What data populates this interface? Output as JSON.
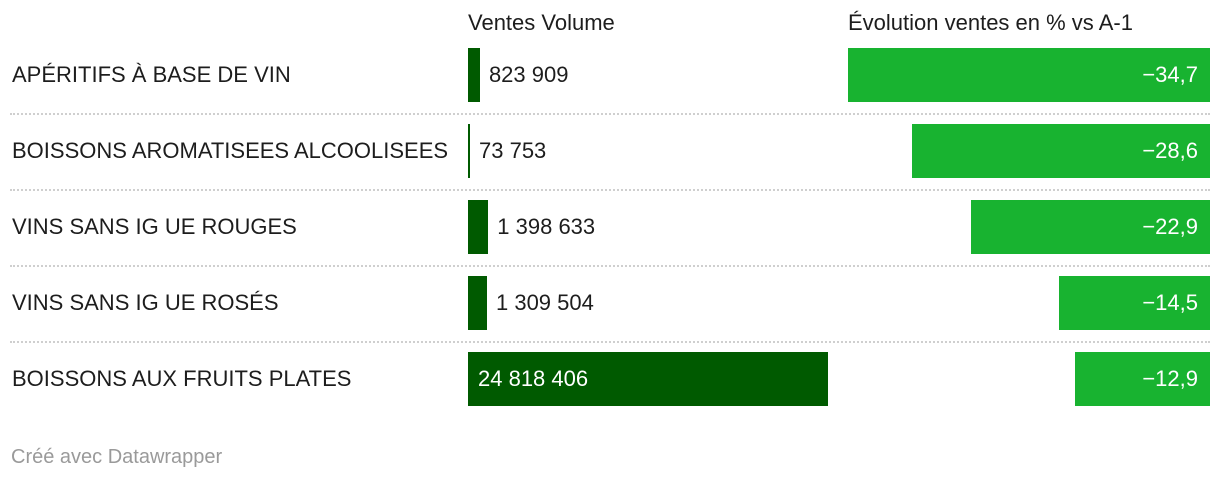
{
  "headers": {
    "volume": "Ventes Volume",
    "evolution": "Évolution ventes en % vs A-1"
  },
  "credit": "Créé avec Datawrapper",
  "colors": {
    "volume_bar": "#005a00",
    "evolution_bar": "#18b330",
    "separator": "#cfcfcf"
  },
  "chart_data": {
    "type": "bar",
    "categories": [
      "APÉRITIFS À BASE DE VIN",
      "BOISSONS AROMATISEES ALCOOLISEES",
      "VINS SANS IG UE ROUGES",
      "VINS SANS IG UE ROSÉS",
      "BOISSONS AUX FRUITS PLATES"
    ],
    "series": [
      {
        "name": "Ventes Volume",
        "values": [
          823909,
          73753,
          1398633,
          1309504,
          24818406
        ],
        "labels": [
          "823 909",
          "73 753",
          "1 398 633",
          "1 309 504",
          "24 818 406"
        ]
      },
      {
        "name": "Évolution ventes en % vs A-1",
        "values": [
          -34.7,
          -28.6,
          -22.9,
          -14.5,
          -12.9
        ],
        "labels": [
          "−34,7",
          "−28,6",
          "−22,9",
          "−14,5",
          "−12,9"
        ]
      }
    ]
  }
}
